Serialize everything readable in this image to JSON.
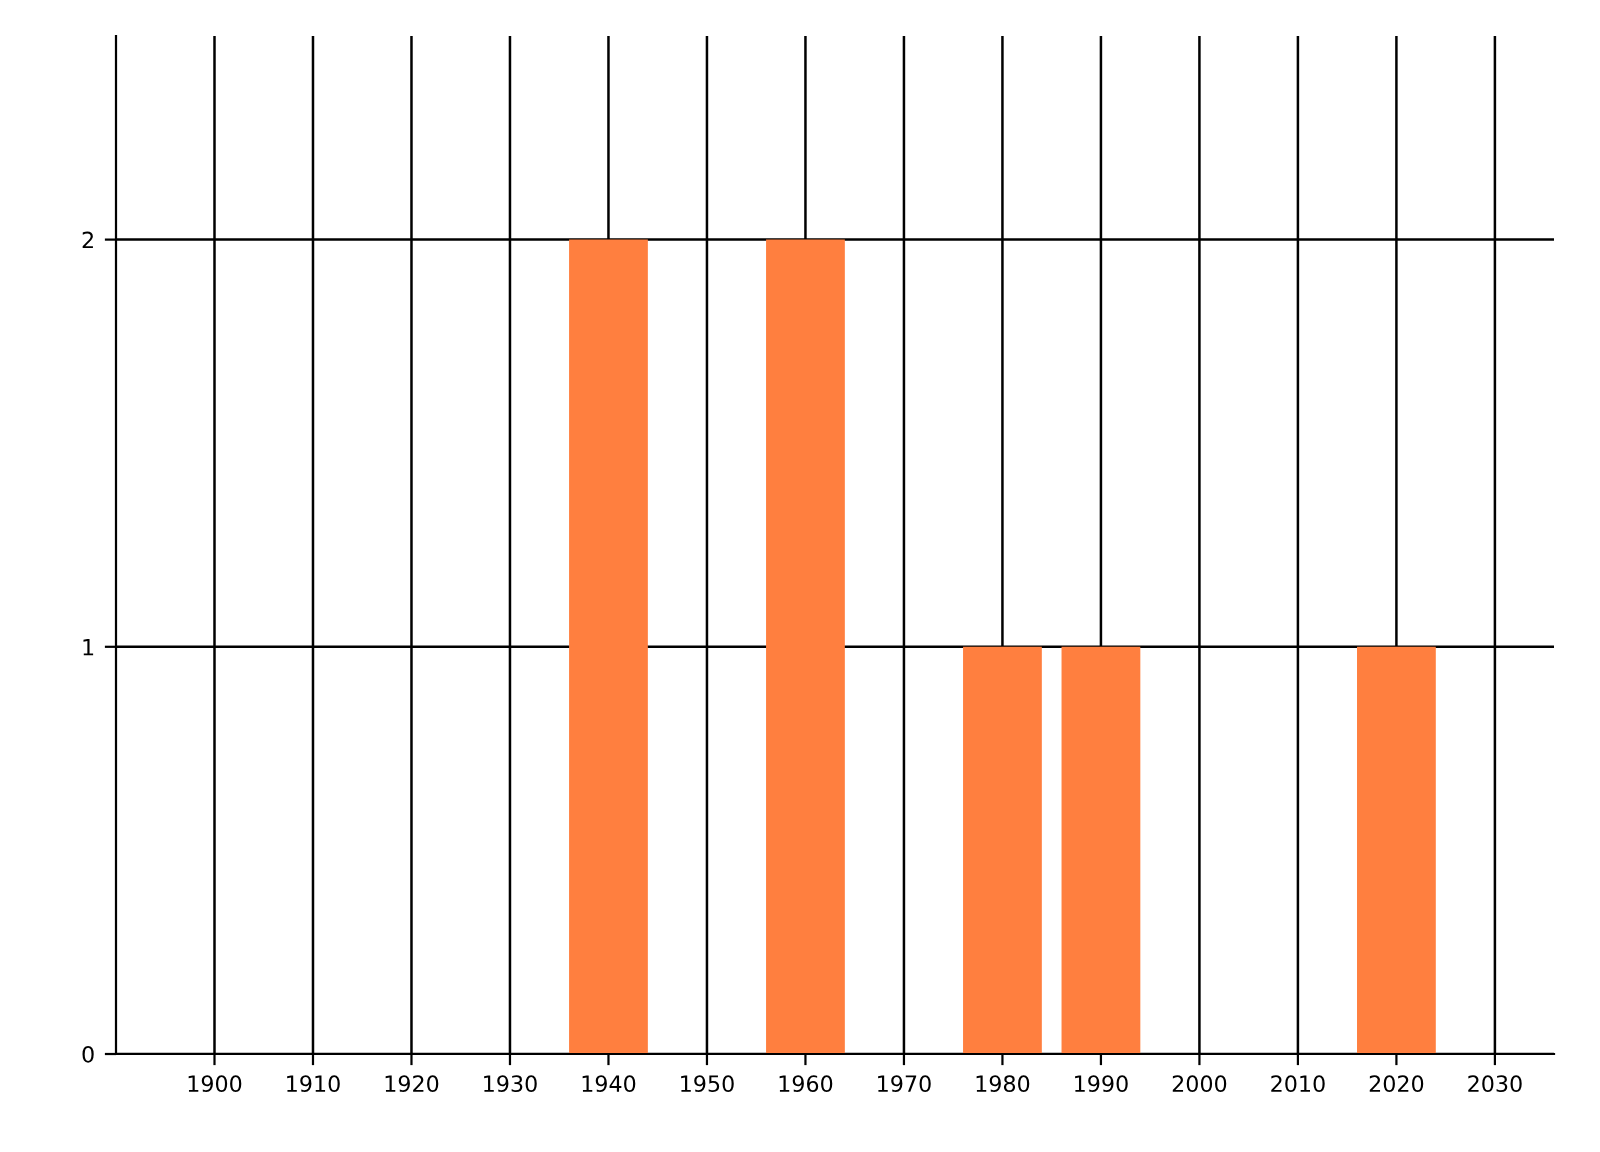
{
  "chart_data": {
    "type": "bar",
    "x": [
      1940,
      1960,
      1980,
      1990,
      2020
    ],
    "values": [
      2,
      2,
      1,
      1,
      1
    ],
    "color": "#ff7f3f",
    "xlim": [
      1890,
      2036
    ],
    "xticks": [
      1900,
      1910,
      1920,
      1930,
      1940,
      1950,
      1960,
      1970,
      1980,
      1990,
      2000,
      2010,
      2020,
      2030
    ],
    "ylim": [
      0,
      2.5
    ],
    "yticks": [
      0,
      1,
      2
    ],
    "grid": true
  }
}
